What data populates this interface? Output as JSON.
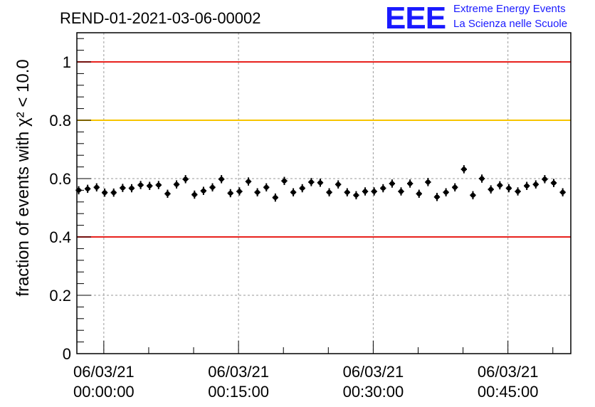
{
  "chart_data": {
    "type": "scatter",
    "title": "REND-01-2021-03-06-00002",
    "ylabel": "fraction of events with χ² < 10.0",
    "xlabel": "",
    "x_unit": "minutes",
    "xlim": [
      -3,
      52
    ],
    "ylim": [
      0,
      1.1
    ],
    "grid": true,
    "y_ticks": [
      {
        "value": 0,
        "label": "0"
      },
      {
        "value": 0.2,
        "label": "0.2"
      },
      {
        "value": 0.4,
        "label": "0.4"
      },
      {
        "value": 0.6,
        "label": "0.6"
      },
      {
        "value": 0.8,
        "label": "0.8"
      },
      {
        "value": 1.0,
        "label": "1"
      }
    ],
    "x_ticks": [
      {
        "value": 0,
        "date": "06/03/21",
        "time": "00:00:00"
      },
      {
        "value": 15,
        "date": "06/03/21",
        "time": "00:15:00"
      },
      {
        "value": 30,
        "date": "06/03/21",
        "time": "00:30:00"
      },
      {
        "value": 45,
        "date": "06/03/21",
        "time": "00:45:00"
      }
    ],
    "reference_lines": [
      {
        "y": 1.0,
        "color": "#e8211d"
      },
      {
        "y": 0.8,
        "color": "#f7c400"
      },
      {
        "y": 0.4,
        "color": "#e8211d"
      }
    ],
    "x_error": 0.33,
    "y_error": 0.014,
    "series": [
      {
        "color": "#000000",
        "points": [
          [
            -2.8,
            0.56
          ],
          [
            -1.8,
            0.565
          ],
          [
            -0.8,
            0.57
          ],
          [
            0.1,
            0.552
          ],
          [
            1.1,
            0.552
          ],
          [
            2.1,
            0.568
          ],
          [
            3.1,
            0.567
          ],
          [
            4.1,
            0.578
          ],
          [
            5.1,
            0.575
          ],
          [
            6.1,
            0.578
          ],
          [
            7.1,
            0.548
          ],
          [
            8.1,
            0.58
          ],
          [
            9.1,
            0.598
          ],
          [
            10.1,
            0.545
          ],
          [
            11.1,
            0.558
          ],
          [
            12.1,
            0.57
          ],
          [
            13.1,
            0.598
          ],
          [
            14.1,
            0.55
          ],
          [
            15.1,
            0.556
          ],
          [
            16.1,
            0.59
          ],
          [
            17.1,
            0.553
          ],
          [
            18.1,
            0.57
          ],
          [
            19.1,
            0.535
          ],
          [
            20.1,
            0.592
          ],
          [
            21.1,
            0.553
          ],
          [
            22.1,
            0.567
          ],
          [
            23.1,
            0.588
          ],
          [
            24.1,
            0.586
          ],
          [
            25.1,
            0.553
          ],
          [
            26.1,
            0.58
          ],
          [
            27.1,
            0.553
          ],
          [
            28.1,
            0.543
          ],
          [
            29.1,
            0.556
          ],
          [
            30.1,
            0.556
          ],
          [
            31.1,
            0.567
          ],
          [
            32.1,
            0.583
          ],
          [
            33.1,
            0.556
          ],
          [
            34.1,
            0.583
          ],
          [
            35.1,
            0.548
          ],
          [
            36.1,
            0.588
          ],
          [
            37.1,
            0.537
          ],
          [
            38.1,
            0.553
          ],
          [
            39.1,
            0.57
          ],
          [
            40.1,
            0.632
          ],
          [
            41.1,
            0.543
          ],
          [
            42.1,
            0.6
          ],
          [
            43.1,
            0.563
          ],
          [
            44.1,
            0.577
          ],
          [
            45.1,
            0.567
          ],
          [
            46.1,
            0.556
          ],
          [
            47.1,
            0.575
          ],
          [
            48.1,
            0.58
          ],
          [
            49.1,
            0.598
          ],
          [
            50.1,
            0.585
          ],
          [
            51.1,
            0.553
          ]
        ]
      }
    ]
  },
  "logo": {
    "mark": "EEE",
    "line1": "Extreme Energy Events",
    "line2": "La Scienza nelle Scuole",
    "color": "#1a1aff"
  }
}
